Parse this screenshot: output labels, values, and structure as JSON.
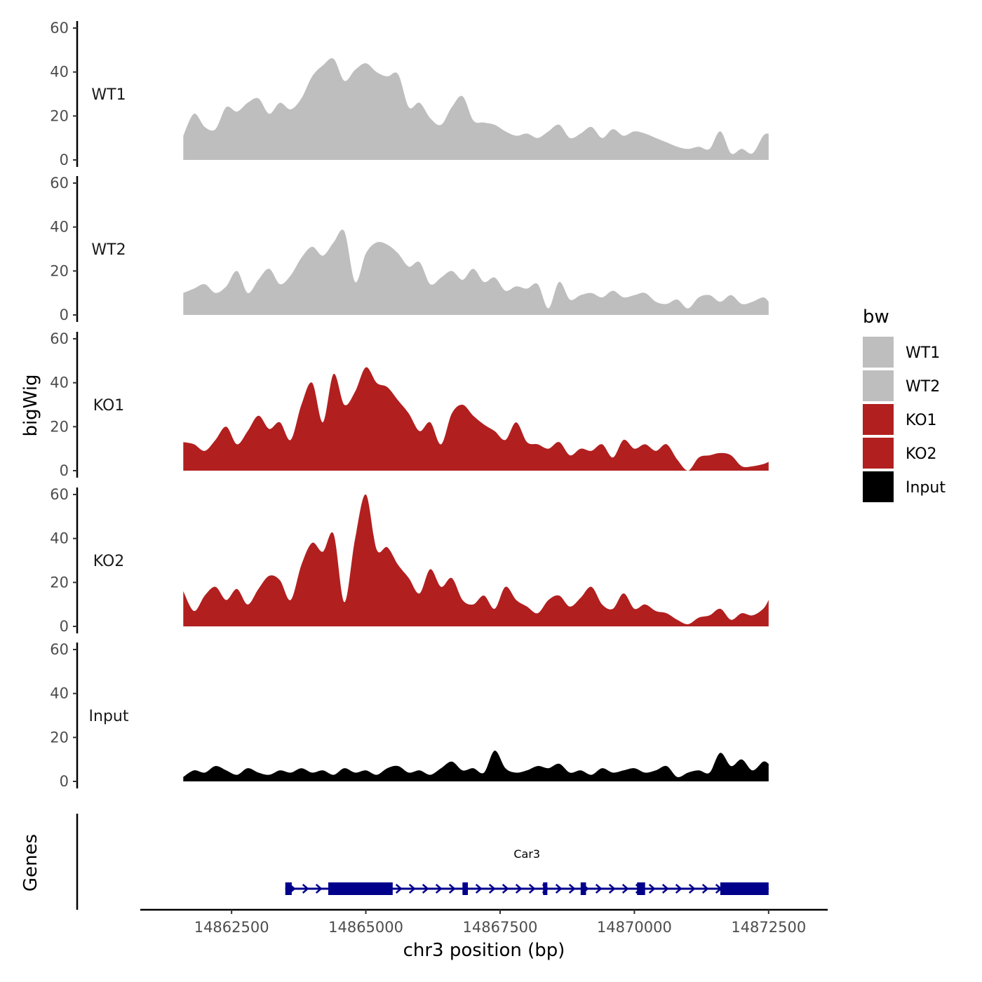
{
  "chart_data": {
    "type": "area",
    "xlabel": "chr3 position (bp)",
    "ylabel": "bigWig",
    "genes_ylabel": "Genes",
    "xlim": [
      14860800,
      14873600
    ],
    "x_ticks": [
      14862500,
      14865000,
      14867500,
      14870000,
      14872500
    ],
    "x_tick_labels": [
      "14862500",
      "14865000",
      "14867500",
      "14870000",
      "14872500"
    ],
    "ylim": [
      0,
      60
    ],
    "y_ticks": [
      0,
      20,
      40,
      60
    ],
    "y_tick_labels": [
      "0",
      "20",
      "40",
      "60"
    ],
    "legend": {
      "title": "bw",
      "position": "right",
      "entries": [
        {
          "label": "WT1",
          "color": "#bebebe"
        },
        {
          "label": "WT2",
          "color": "#bebebe"
        },
        {
          "label": "KO1",
          "color": "#b21f1f"
        },
        {
          "label": "KO2",
          "color": "#b21f1f"
        },
        {
          "label": "Input",
          "color": "#000000"
        }
      ]
    },
    "series": [
      {
        "name": "WT1",
        "color": "#bebebe",
        "x": [
          14861600,
          14861800,
          14862000,
          14862200,
          14862400,
          14862600,
          14862800,
          14863000,
          14863200,
          14863400,
          14863600,
          14863800,
          14864000,
          14864200,
          14864400,
          14864600,
          14864800,
          14865000,
          14865200,
          14865400,
          14865600,
          14865800,
          14866000,
          14866200,
          14866400,
          14866600,
          14866800,
          14867000,
          14867200,
          14867400,
          14867600,
          14867800,
          14868000,
          14868200,
          14868400,
          14868600,
          14868800,
          14869000,
          14869200,
          14869400,
          14869600,
          14869800,
          14870000,
          14870200,
          14870400,
          14870600,
          14870800,
          14871000,
          14871200,
          14871400,
          14871600,
          14871800,
          14872000,
          14872200,
          14872400,
          14872500
        ],
        "values": [
          11,
          21,
          15,
          14,
          24,
          22,
          26,
          28,
          21,
          26,
          23,
          28,
          38,
          43,
          46,
          36,
          41,
          44,
          40,
          38,
          39,
          24,
          26,
          19,
          16,
          24,
          29,
          18,
          17,
          16,
          13,
          11,
          12,
          10,
          13,
          16,
          10,
          12,
          15,
          10,
          14,
          11,
          13,
          12,
          10,
          8,
          6,
          5,
          6,
          5,
          13,
          3,
          5,
          3,
          11,
          12
        ]
      },
      {
        "name": "WT2",
        "color": "#bebebe",
        "x": [
          14861600,
          14861800,
          14862000,
          14862200,
          14862400,
          14862600,
          14862800,
          14863000,
          14863200,
          14863400,
          14863600,
          14863800,
          14864000,
          14864200,
          14864400,
          14864600,
          14864800,
          14865000,
          14865200,
          14865400,
          14865600,
          14865800,
          14866000,
          14866200,
          14866400,
          14866600,
          14866800,
          14867000,
          14867200,
          14867400,
          14867600,
          14867800,
          14868000,
          14868200,
          14868400,
          14868600,
          14868800,
          14869000,
          14869200,
          14869400,
          14869600,
          14869800,
          14870000,
          14870200,
          14870400,
          14870600,
          14870800,
          14871000,
          14871200,
          14871400,
          14871600,
          14871800,
          14872000,
          14872200,
          14872400,
          14872500
        ],
        "values": [
          10,
          12,
          14,
          10,
          13,
          20,
          10,
          16,
          21,
          14,
          18,
          26,
          31,
          27,
          33,
          38,
          15,
          28,
          33,
          32,
          28,
          22,
          24,
          14,
          17,
          20,
          16,
          21,
          15,
          17,
          11,
          13,
          12,
          14,
          3,
          15,
          7,
          9,
          10,
          8,
          11,
          8,
          9,
          10,
          6,
          5,
          7,
          3,
          8,
          9,
          6,
          9,
          5,
          6,
          8,
          6
        ]
      },
      {
        "name": "KO1",
        "color": "#b21f1f",
        "x": [
          14861600,
          14861800,
          14862000,
          14862200,
          14862400,
          14862600,
          14862800,
          14863000,
          14863200,
          14863400,
          14863600,
          14863800,
          14864000,
          14864200,
          14864400,
          14864600,
          14864800,
          14865000,
          14865200,
          14865400,
          14865600,
          14865800,
          14866000,
          14866200,
          14866400,
          14866600,
          14866800,
          14867000,
          14867200,
          14867400,
          14867600,
          14867800,
          14868000,
          14868200,
          14868400,
          14868600,
          14868800,
          14869000,
          14869200,
          14869400,
          14869600,
          14869800,
          14870000,
          14870200,
          14870400,
          14870600,
          14870800,
          14871000,
          14871200,
          14871400,
          14871600,
          14871800,
          14872000,
          14872200,
          14872400,
          14872500
        ],
        "values": [
          13,
          12,
          9,
          14,
          20,
          12,
          18,
          25,
          19,
          22,
          14,
          30,
          40,
          22,
          44,
          30,
          36,
          47,
          40,
          38,
          32,
          26,
          18,
          22,
          12,
          26,
          30,
          25,
          21,
          18,
          14,
          22,
          13,
          12,
          10,
          13,
          7,
          10,
          9,
          12,
          6,
          14,
          10,
          12,
          9,
          12,
          5,
          0,
          6,
          7,
          8,
          7,
          2,
          2,
          3,
          4
        ]
      },
      {
        "name": "KO2",
        "color": "#b21f1f",
        "x": [
          14861600,
          14861800,
          14862000,
          14862200,
          14862400,
          14862600,
          14862800,
          14863000,
          14863200,
          14863400,
          14863600,
          14863800,
          14864000,
          14864200,
          14864400,
          14864600,
          14864800,
          14865000,
          14865200,
          14865400,
          14865600,
          14865800,
          14866000,
          14866200,
          14866400,
          14866600,
          14866800,
          14867000,
          14867200,
          14867400,
          14867600,
          14867800,
          14868000,
          14868200,
          14868400,
          14868600,
          14868800,
          14869000,
          14869200,
          14869400,
          14869600,
          14869800,
          14870000,
          14870200,
          14870400,
          14870600,
          14870800,
          14871000,
          14871200,
          14871400,
          14871600,
          14871800,
          14872000,
          14872200,
          14872400,
          14872500
        ],
        "values": [
          16,
          7,
          14,
          18,
          12,
          17,
          10,
          17,
          23,
          21,
          12,
          28,
          38,
          34,
          42,
          11,
          40,
          60,
          35,
          36,
          28,
          22,
          15,
          26,
          18,
          22,
          12,
          10,
          14,
          8,
          18,
          12,
          9,
          6,
          12,
          14,
          9,
          13,
          18,
          10,
          8,
          15,
          8,
          10,
          7,
          6,
          3,
          1,
          4,
          5,
          8,
          3,
          6,
          5,
          8,
          12
        ]
      },
      {
        "name": "Input",
        "color": "#000000",
        "x": [
          14861600,
          14861800,
          14862000,
          14862200,
          14862400,
          14862600,
          14862800,
          14863000,
          14863200,
          14863400,
          14863600,
          14863800,
          14864000,
          14864200,
          14864400,
          14864600,
          14864800,
          14865000,
          14865200,
          14865400,
          14865600,
          14865800,
          14866000,
          14866200,
          14866400,
          14866600,
          14866800,
          14867000,
          14867200,
          14867400,
          14867600,
          14867800,
          14868000,
          14868200,
          14868400,
          14868600,
          14868800,
          14869000,
          14869200,
          14869400,
          14869600,
          14869800,
          14870000,
          14870200,
          14870400,
          14870600,
          14870800,
          14871000,
          14871200,
          14871400,
          14871600,
          14871800,
          14872000,
          14872200,
          14872400,
          14872500
        ],
        "values": [
          2,
          5,
          4,
          7,
          5,
          3,
          6,
          4,
          3,
          5,
          4,
          6,
          4,
          5,
          3,
          6,
          4,
          5,
          3,
          6,
          7,
          4,
          5,
          3,
          6,
          9,
          5,
          6,
          4,
          14,
          6,
          4,
          5,
          7,
          6,
          8,
          4,
          5,
          3,
          6,
          4,
          5,
          6,
          4,
          5,
          7,
          2,
          4,
          5,
          4,
          13,
          7,
          10,
          5,
          9,
          8
        ]
      }
    ],
    "genes": [
      {
        "name": "Car3",
        "start": 14863500,
        "end": 14872500,
        "strand": "+",
        "exons": [
          [
            14863500,
            14863620
          ],
          [
            14864300,
            14865500
          ],
          [
            14866800,
            14866900
          ],
          [
            14868300,
            14868380
          ],
          [
            14869000,
            14869100
          ],
          [
            14870050,
            14870200
          ],
          [
            14871600,
            14872500
          ]
        ]
      }
    ]
  }
}
